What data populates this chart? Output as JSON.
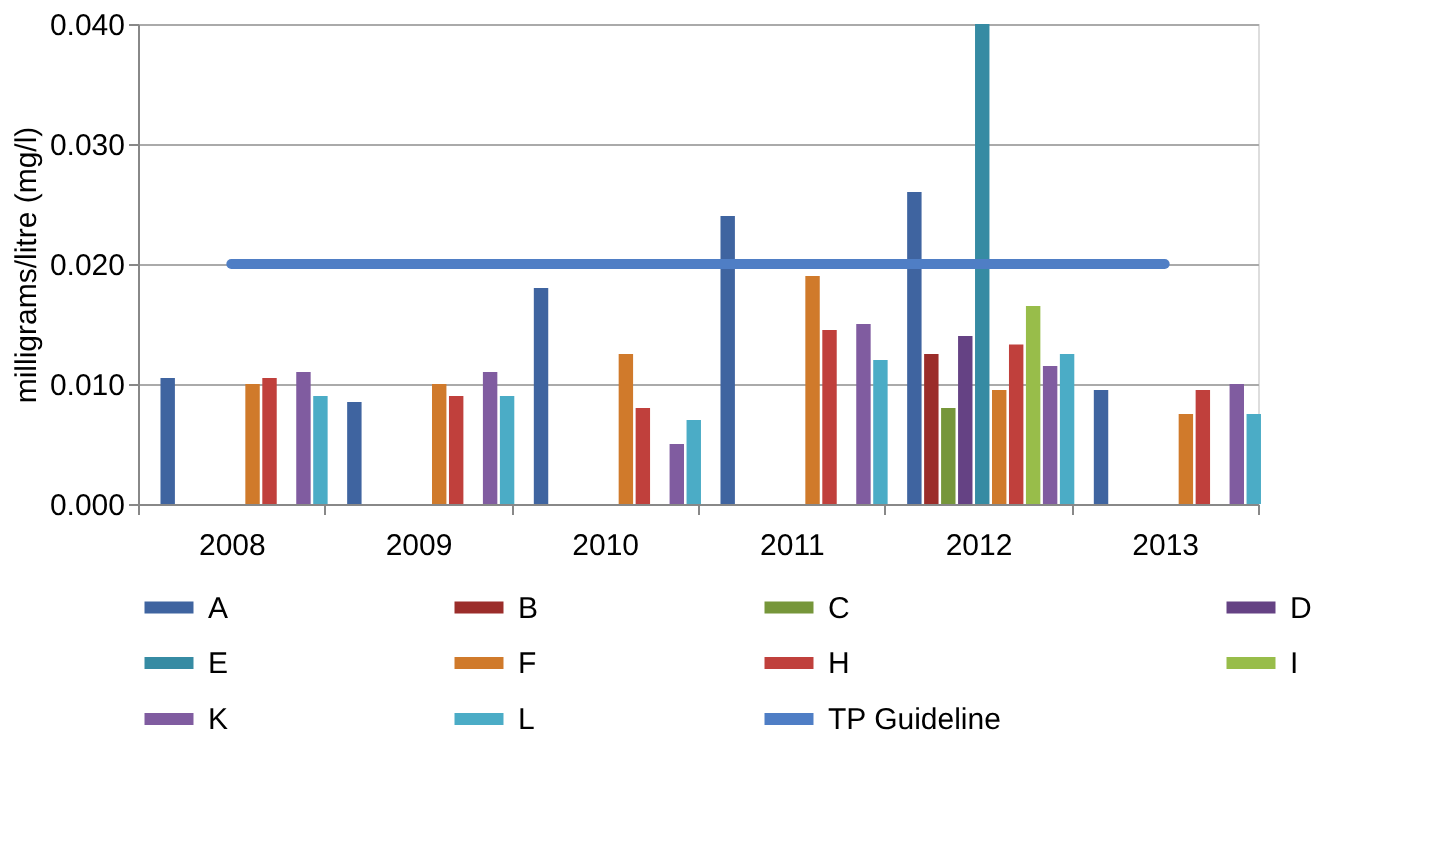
{
  "chart_data": {
    "type": "bar",
    "ylabel": "milligrams/litre (mg/l)",
    "categories": [
      "2008",
      "2009",
      "2010",
      "2011",
      "2012",
      "2013"
    ],
    "series": [
      {
        "name": "A",
        "color": "#3f64a0",
        "values": [
          0.0105,
          0.0085,
          0.018,
          0.024,
          0.026,
          0.0095
        ]
      },
      {
        "name": "B",
        "color": "#9b2d2a",
        "values": [
          null,
          null,
          null,
          null,
          0.0125,
          null
        ]
      },
      {
        "name": "C",
        "color": "#76963a",
        "values": [
          null,
          null,
          null,
          null,
          0.008,
          null
        ]
      },
      {
        "name": "D",
        "color": "#654284",
        "values": [
          null,
          null,
          null,
          null,
          0.014,
          null
        ]
      },
      {
        "name": "E",
        "color": "#368ba3",
        "values": [
          null,
          null,
          null,
          null,
          0.04,
          null
        ]
      },
      {
        "name": "F",
        "color": "#d07a2b",
        "values": [
          0.01,
          0.01,
          0.0125,
          0.019,
          0.0095,
          0.0075
        ]
      },
      {
        "name": "H",
        "color": "#c0403c",
        "values": [
          0.0105,
          0.009,
          0.008,
          0.0145,
          0.0133,
          0.0095
        ]
      },
      {
        "name": "I",
        "color": "#98bd4a",
        "values": [
          null,
          null,
          null,
          null,
          0.0165,
          null
        ]
      },
      {
        "name": "K",
        "color": "#805ca0",
        "values": [
          0.011,
          0.011,
          0.005,
          0.015,
          0.0115,
          0.01
        ]
      },
      {
        "name": "L",
        "color": "#4bacc6",
        "values": [
          0.009,
          0.009,
          0.007,
          0.012,
          0.0125,
          0.0075
        ]
      },
      {
        "name": "TP Guideline",
        "type": "line",
        "color": "#4f7ec5",
        "values": [
          0.02,
          0.02,
          0.02,
          0.02,
          0.02,
          0.02
        ]
      }
    ],
    "ylim": [
      0,
      0.04
    ],
    "yticks": [
      {
        "value": 0,
        "label": "0.000"
      },
      {
        "value": 0.01,
        "label": "0.010"
      },
      {
        "value": 0.02,
        "label": "0.020"
      },
      {
        "value": 0.03,
        "label": "0.030"
      },
      {
        "value": 0.04,
        "label": "0.040"
      }
    ],
    "grid": "y",
    "legend": "bottom"
  }
}
